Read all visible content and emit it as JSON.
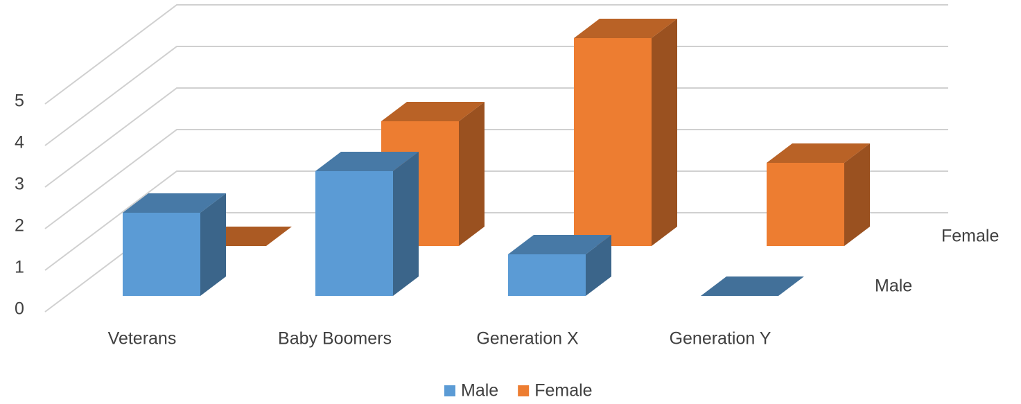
{
  "chart_data": {
    "type": "bar3d",
    "categories": [
      "Veterans",
      "Baby Boomers",
      "Generation X",
      "Generation Y"
    ],
    "series": [
      {
        "name": "Male",
        "color": "#5b9bd5",
        "values": [
          2,
          3,
          1,
          0
        ]
      },
      {
        "name": "Female",
        "color": "#ed7d31",
        "values": [
          0,
          3,
          5,
          2
        ]
      }
    ],
    "ylim": [
      0,
      5
    ],
    "yticks": [
      0,
      1,
      2,
      3,
      4,
      5
    ],
    "grid": true,
    "legend": "bottom"
  }
}
